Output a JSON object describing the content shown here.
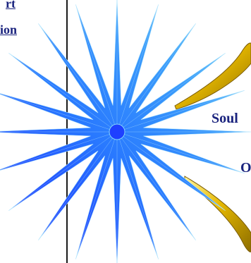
{
  "nav": {
    "links": [
      {
        "label": "rt"
      },
      {
        "label": "ion"
      }
    ]
  },
  "art": {
    "labels": {
      "soul": "Soul",
      "o": "O"
    },
    "icons": {
      "star": "blue-starburst-icon",
      "ribbon": "gold-ribbon-icon"
    },
    "colors": {
      "star_light": "#4fc3f7",
      "star_dark": "#1a1aff",
      "gold": "#e6b800",
      "text": "#1a237e"
    }
  }
}
